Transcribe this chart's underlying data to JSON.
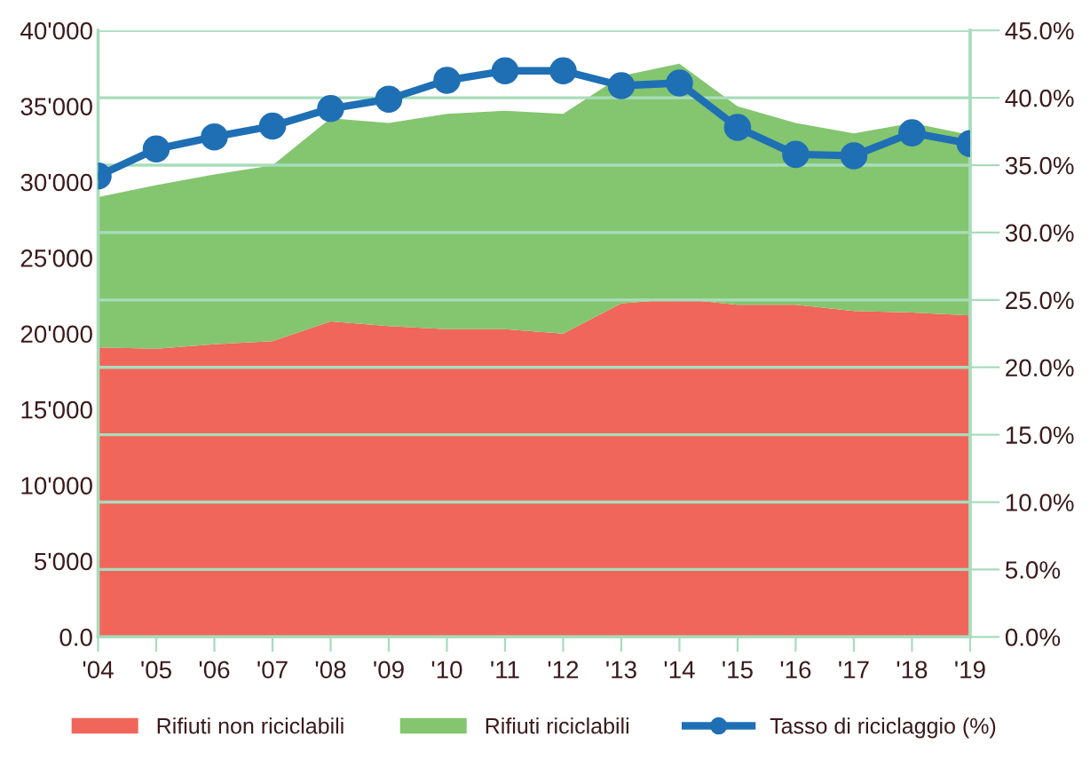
{
  "chart_data": {
    "type": "area",
    "stacked": true,
    "categories": [
      "'04",
      "'05",
      "'06",
      "'07",
      "'08",
      "'09",
      "'10",
      "'11",
      "'12",
      "'13",
      "'14",
      "'15",
      "'16",
      "'17",
      "'18",
      "'19"
    ],
    "series": [
      {
        "name": "Rifiuti non riciclabili",
        "color": "#f0665a",
        "values": [
          19100,
          19000,
          19300,
          19500,
          20800,
          20500,
          20300,
          20300,
          20000,
          22000,
          22300,
          21900,
          21900,
          21500,
          21400,
          21200
        ]
      },
      {
        "name": "Rifiuti riciclabili",
        "color": "#84c56f",
        "values": [
          9900,
          10800,
          11200,
          11600,
          13400,
          13400,
          14200,
          14400,
          14500,
          15000,
          15500,
          13100,
          12000,
          11700,
          12500,
          11900
        ]
      },
      {
        "name": "Tasso di riciclaggio (%)",
        "type": "line",
        "axis": "y2",
        "color": "#1f6fb5",
        "marker": "circle",
        "values": [
          34.2,
          36.2,
          37.1,
          37.9,
          39.2,
          39.9,
          41.3,
          42.0,
          42.0,
          40.9,
          41.1,
          37.8,
          35.8,
          35.7,
          37.4,
          36.6
        ]
      }
    ],
    "ylim": [
      0,
      40000
    ],
    "yticks": [
      {
        "value": 0,
        "label": "0.0"
      },
      {
        "value": 5000,
        "label": "5'000"
      },
      {
        "value": 10000,
        "label": "10'000"
      },
      {
        "value": 15000,
        "label": "15'000"
      },
      {
        "value": 20000,
        "label": "20'000"
      },
      {
        "value": 25000,
        "label": "25'000"
      },
      {
        "value": 30000,
        "label": "30'000"
      },
      {
        "value": 35000,
        "label": "35'000"
      },
      {
        "value": 40000,
        "label": "40'000"
      }
    ],
    "y2lim": [
      0,
      45
    ],
    "y2ticks": [
      {
        "value": 0,
        "label": "0.0%"
      },
      {
        "value": 5,
        "label": "5.0%"
      },
      {
        "value": 10,
        "label": "10.0%"
      },
      {
        "value": 15,
        "label": "15.0%"
      },
      {
        "value": 20,
        "label": "20.0%"
      },
      {
        "value": 25,
        "label": "25.0%"
      },
      {
        "value": 30,
        "label": "30.0%"
      },
      {
        "value": 35,
        "label": "35.0%"
      },
      {
        "value": 40,
        "label": "40.0%"
      },
      {
        "value": 45,
        "label": "45.0%"
      }
    ],
    "grid": "y",
    "legend": "bottom"
  }
}
